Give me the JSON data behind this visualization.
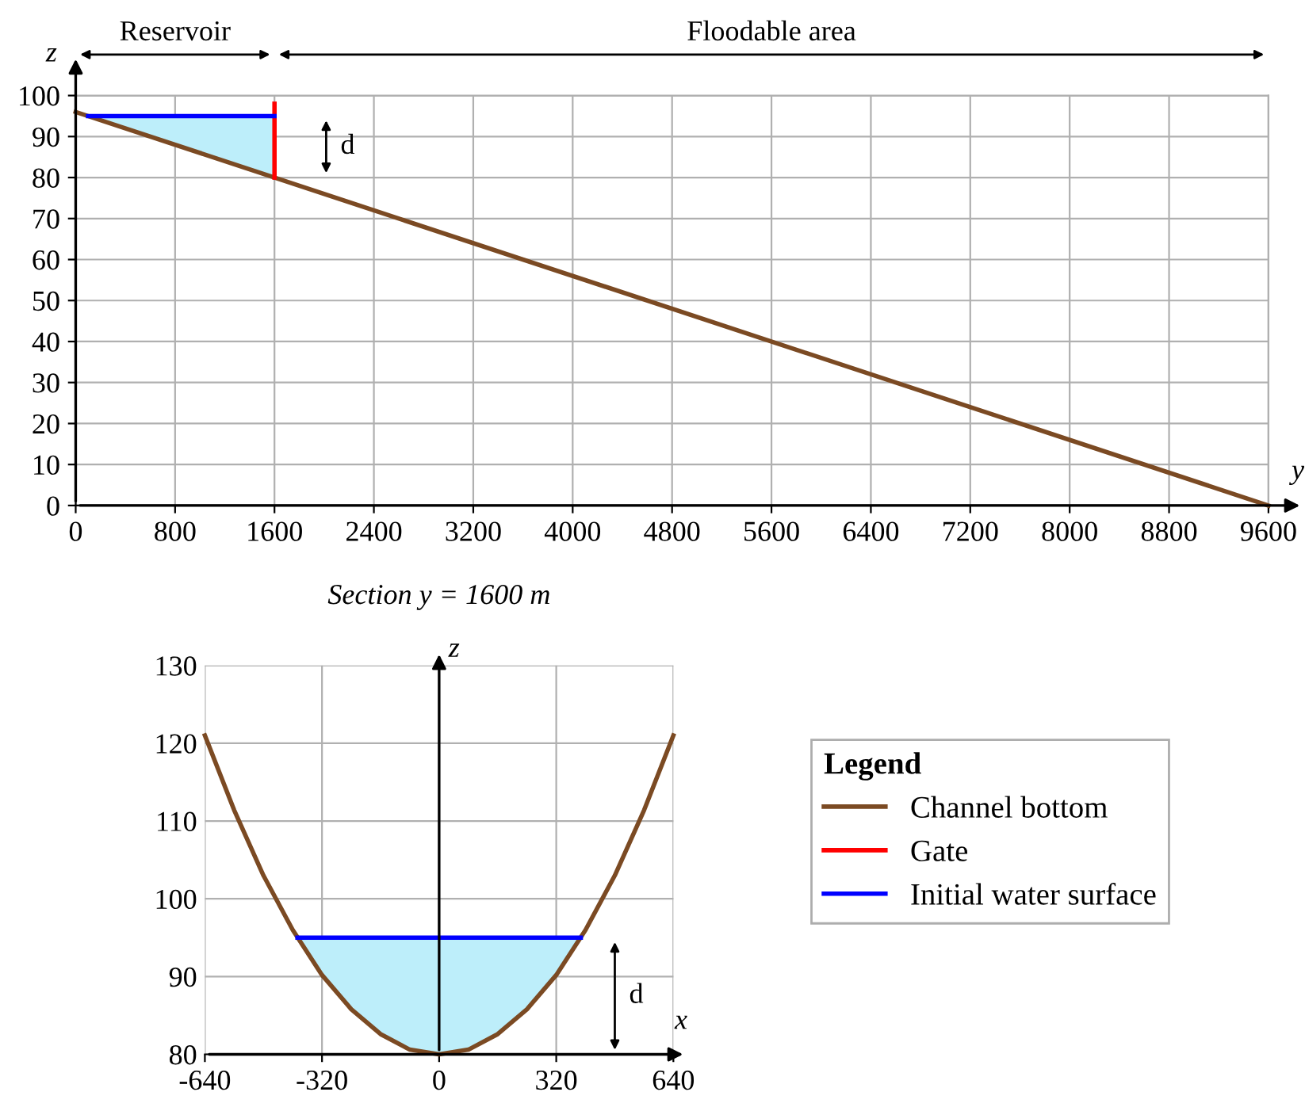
{
  "chart_data": [
    {
      "type": "line",
      "xlabel": "y",
      "ylabel": "z",
      "x": [
        0,
        9600
      ],
      "xlim": [
        0,
        9600
      ],
      "xticks": [
        0,
        800,
        1600,
        2400,
        3200,
        4000,
        4800,
        5600,
        6400,
        7200,
        8000,
        8800,
        9600
      ],
      "ylim": [
        0,
        100
      ],
      "yticks": [
        0,
        10,
        20,
        30,
        40,
        50,
        60,
        70,
        80,
        90,
        100
      ],
      "grid": true,
      "legend": "bottom right",
      "legend_title": "Legend",
      "series": [
        {
          "name": "Channel bottom",
          "color": "#7b4a23",
          "values": [
            96,
            0
          ]
        },
        {
          "name": "Gate",
          "color": "#ff0000",
          "x": [
            1600,
            1600
          ],
          "values": [
            80,
            98
          ]
        },
        {
          "name": "Initial water surface",
          "color": "#0000ff",
          "x": [
            100,
            1600
          ],
          "values": [
            95,
            95
          ],
          "lower": [
            95,
            80
          ],
          "upper": [
            95,
            95
          ]
        }
      ],
      "annotations": [
        "Reservoir",
        "Floodable area",
        "d"
      ]
    },
    {
      "type": "line",
      "title": "Section y = 1600 m",
      "xlabel": "x",
      "ylabel": "z",
      "x": [
        -640,
        -560,
        -480,
        -400,
        -320,
        -240,
        -160,
        -80,
        0,
        80,
        160,
        240,
        320,
        400,
        480,
        560,
        640
      ],
      "xlim": [
        -640,
        640
      ],
      "xticks": [
        -640,
        -320,
        0,
        320,
        640
      ],
      "ylim": [
        80,
        130
      ],
      "yticks": [
        80,
        90,
        100,
        110,
        120,
        130
      ],
      "grid": true,
      "series": [
        {
          "color": "#7b4a23",
          "values": [
            121.0,
            111.4,
            103.0,
            96.0,
            90.2,
            85.8,
            82.6,
            80.6,
            80,
            80.6,
            82.6,
            85.8,
            90.2,
            96.0,
            103.0,
            111.4,
            121.0
          ]
        },
        {
          "color": "#0000ff",
          "x": [
            -387,
            -320,
            -240,
            -160,
            -80,
            0,
            80,
            160,
            240,
            320,
            387
          ],
          "values": [
            95,
            95,
            95,
            95,
            95,
            95,
            95,
            95,
            95,
            95,
            95
          ],
          "lower": [
            95,
            90.2,
            85.8,
            82.6,
            80.6,
            80,
            80.6,
            82.6,
            85.8,
            90.2,
            95
          ],
          "upper": [
            95,
            95,
            95,
            95,
            95,
            95,
            95,
            95,
            95,
            95,
            95
          ]
        }
      ],
      "annotations": [
        "d"
      ]
    }
  ]
}
